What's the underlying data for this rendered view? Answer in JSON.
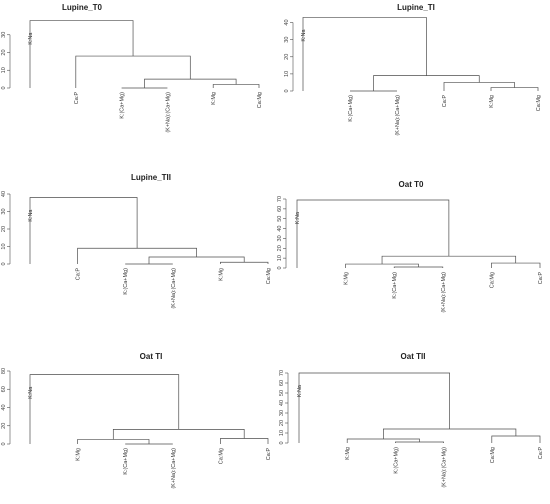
{
  "chart_data": [
    {
      "type": "dendrogram",
      "title": "Lupine_T0",
      "ylim": [
        0,
        40
      ],
      "yticks": [
        0,
        10,
        20,
        30
      ],
      "leaves": [
        "K:Na",
        "Ca:P",
        "K:(Ca+Mg)",
        "(K+Na):(Ca+Mg)",
        "K:Mg",
        "Ca:Mg"
      ],
      "merges": [
        {
          "a": "K:Mg",
          "b": "Ca:Mg",
          "height": 2
        },
        {
          "a": "K:(Ca+Mg)",
          "b": "(K+Na):(Ca+Mg)",
          "height": 0
        },
        {
          "a": 1,
          "b": 0,
          "height": 5
        },
        {
          "a": "Ca:P",
          "b": 2,
          "height": 18
        },
        {
          "a": "K:Na",
          "b": 3,
          "height": 38
        }
      ]
    },
    {
      "type": "dendrogram",
      "title": "Lupine_TI",
      "ylim": [
        0,
        45
      ],
      "yticks": [
        0,
        10,
        20,
        30,
        40
      ],
      "leaves": [
        "K:Na",
        "K:(Ca+Mg)",
        "(K+Na):(Ca+Mg)",
        "Ca:P",
        "K:Mg",
        "Ca:Mg"
      ],
      "merges": [
        {
          "a": "K:(Ca+Mg)",
          "b": "(K+Na):(Ca+Mg)",
          "height": 0
        },
        {
          "a": "K:Mg",
          "b": "Ca:Mg",
          "height": 2
        },
        {
          "a": "Ca:P",
          "b": 1,
          "height": 5
        },
        {
          "a": 0,
          "b": 2,
          "height": 9
        },
        {
          "a": "K:Na",
          "b": 3,
          "height": 43
        }
      ]
    },
    {
      "type": "dendrogram",
      "title": "Lupine_TII",
      "ylim": [
        0,
        40
      ],
      "yticks": [
        0,
        10,
        20,
        30,
        40
      ],
      "leaves": [
        "K:Na",
        "Ca:P",
        "K:(Ca+Mg)",
        "(K+Na):(Ca+Mg)",
        "K:Mg",
        "Ca:Mg"
      ],
      "merges": [
        {
          "a": "K:(Ca+Mg)",
          "b": "(K+Na):(Ca+Mg)",
          "height": 0
        },
        {
          "a": "K:Mg",
          "b": "Ca:Mg",
          "height": 1
        },
        {
          "a": 0,
          "b": 1,
          "height": 4
        },
        {
          "a": "Ca:P",
          "b": 2,
          "height": 9
        },
        {
          "a": "K:Na",
          "b": 3,
          "height": 38
        }
      ]
    },
    {
      "type": "dendrogram",
      "title": "Oat T0",
      "ylim": [
        0,
        70
      ],
      "yticks": [
        0,
        10,
        20,
        30,
        40,
        50,
        60,
        70
      ],
      "leaves": [
        "K:Na",
        "K:Mg",
        "K:(Ca+Mg)",
        "(K+Na):(Ca+Mg)",
        "Ca:Mg",
        "Ca:P"
      ],
      "merges": [
        {
          "a": "K:(Ca+Mg)",
          "b": "(K+Na):(Ca+Mg)",
          "height": 1
        },
        {
          "a": "K:Mg",
          "b": 0,
          "height": 4
        },
        {
          "a": "Ca:Mg",
          "b": "Ca:P",
          "height": 5
        },
        {
          "a": 1,
          "b": 2,
          "height": 12
        },
        {
          "a": "K:Na",
          "b": 3,
          "height": 69
        }
      ]
    },
    {
      "type": "dendrogram",
      "title": "Oat TI",
      "ylim": [
        0,
        80
      ],
      "yticks": [
        0,
        20,
        40,
        60,
        80
      ],
      "leaves": [
        "K:Na",
        "K:Mg",
        "K:(Ca+Mg)",
        "(K+Na):(Ca+Mg)",
        "Ca:Mg",
        "Ca:P"
      ],
      "merges": [
        {
          "a": "K:(Ca+Mg)",
          "b": "(K+Na):(Ca+Mg)",
          "height": 0
        },
        {
          "a": "K:Mg",
          "b": 0,
          "height": 5
        },
        {
          "a": "Ca:Mg",
          "b": "Ca:P",
          "height": 6
        },
        {
          "a": 1,
          "b": 2,
          "height": 16
        },
        {
          "a": "K:Na",
          "b": 3,
          "height": 76
        }
      ]
    },
    {
      "type": "dendrogram",
      "title": "Oat TII",
      "ylim": [
        0,
        70
      ],
      "yticks": [
        0,
        10,
        20,
        30,
        40,
        50,
        60,
        70
      ],
      "leaves": [
        "K:Na",
        "K:Mg",
        "K:(Ca+Mg)",
        "(K+Na):(Ca+Mg)",
        "Ca:Mg",
        "Ca:P"
      ],
      "merges": [
        {
          "a": "K:(Ca+Mg)",
          "b": "(K+Na):(Ca+Mg)",
          "height": 1
        },
        {
          "a": "K:Mg",
          "b": 0,
          "height": 4
        },
        {
          "a": "Ca:Mg",
          "b": "Ca:P",
          "height": 7
        },
        {
          "a": 1,
          "b": 2,
          "height": 14
        },
        {
          "a": "K:Na",
          "b": 3,
          "height": 70
        }
      ]
    }
  ]
}
